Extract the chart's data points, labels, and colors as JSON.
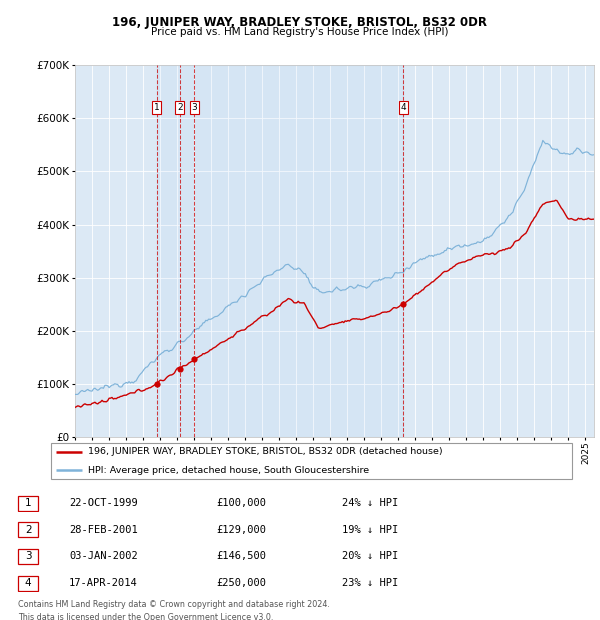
{
  "title1": "196, JUNIPER WAY, BRADLEY STOKE, BRISTOL, BS32 0DR",
  "title2": "Price paid vs. HM Land Registry's House Price Index (HPI)",
  "bg_color": "#dce9f5",
  "hpi_color": "#7fb3d9",
  "price_color": "#cc0000",
  "sales": [
    {
      "num": 1,
      "date_x": 1999.81,
      "price": 100000
    },
    {
      "num": 2,
      "date_x": 2001.16,
      "price": 129000
    },
    {
      "num": 3,
      "date_x": 2002.01,
      "price": 146500
    },
    {
      "num": 4,
      "date_x": 2014.29,
      "price": 250000
    }
  ],
  "legend_entries": [
    "196, JUNIPER WAY, BRADLEY STOKE, BRISTOL, BS32 0DR (detached house)",
    "HPI: Average price, detached house, South Gloucestershire"
  ],
  "table_rows": [
    [
      "1",
      "22-OCT-1999",
      "£100,000",
      "24% ↓ HPI"
    ],
    [
      "2",
      "28-FEB-2001",
      "£129,000",
      "19% ↓ HPI"
    ],
    [
      "3",
      "03-JAN-2002",
      "£146,500",
      "20% ↓ HPI"
    ],
    [
      "4",
      "17-APR-2014",
      "£250,000",
      "23% ↓ HPI"
    ]
  ],
  "footer1": "Contains HM Land Registry data © Crown copyright and database right 2024.",
  "footer2": "This data is licensed under the Open Government Licence v3.0.",
  "ylim": [
    0,
    700000
  ],
  "xlim": [
    1995.0,
    2025.5
  ]
}
